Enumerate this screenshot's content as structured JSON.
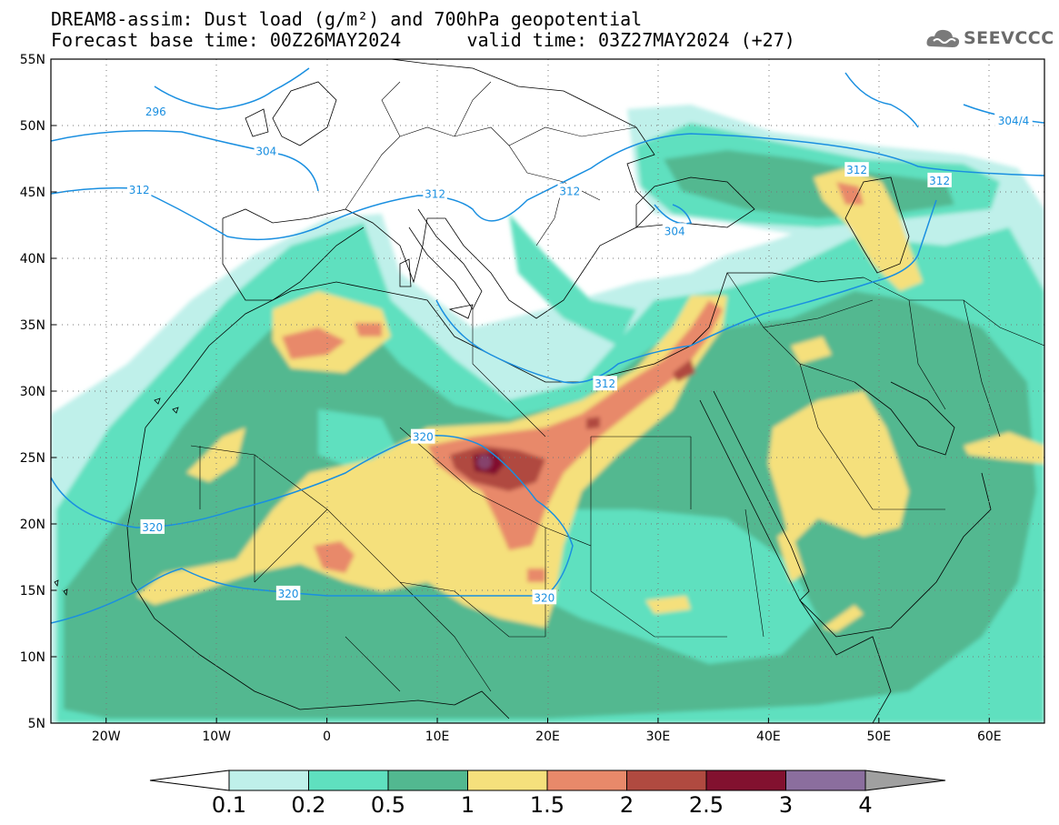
{
  "title": {
    "line1": "DREAM8-assim: Dust load (g/m²) and 700hPa geopotential",
    "line2": "Forecast base time: 00Z26MAY2024      valid time: 03Z27MAY2024 (+27)"
  },
  "logo": {
    "text": "SEEVCCC",
    "icon": "cloud-logo-icon"
  },
  "axes": {
    "lat_labels": [
      "55N",
      "50N",
      "45N",
      "40N",
      "35N",
      "30N",
      "25N",
      "20N",
      "15N",
      "10N",
      "5N"
    ],
    "lat_values": [
      55,
      50,
      45,
      40,
      35,
      30,
      25,
      20,
      15,
      10,
      5
    ],
    "lon_labels": [
      "20W",
      "10W",
      "0",
      "10E",
      "20E",
      "30E",
      "40E",
      "50E",
      "60E"
    ],
    "lon_values": [
      -20,
      -10,
      0,
      10,
      20,
      30,
      40,
      50,
      60
    ],
    "lon_range": [
      -25,
      65
    ],
    "lat_range": [
      5,
      55
    ],
    "grid": "dotted"
  },
  "geopotential_labels": [
    {
      "text": "296",
      "lon": -15.5,
      "lat": 51.1
    },
    {
      "text": "304",
      "lon": -5.5,
      "lat": 48.1
    },
    {
      "text": "312",
      "lon": -17.0,
      "lat": 45.2
    },
    {
      "text": "312",
      "lon": 9.8,
      "lat": 44.9
    },
    {
      "text": "312",
      "lon": 22.0,
      "lat": 45.1
    },
    {
      "text": "304",
      "lon": 31.5,
      "lat": 42.1
    },
    {
      "text": "312",
      "lon": 48.0,
      "lat": 46.7
    },
    {
      "text": "312",
      "lon": 55.5,
      "lat": 45.9
    },
    {
      "text": "304/4",
      "lon": 62.2,
      "lat": 50.4
    },
    {
      "text": "312",
      "lon": 25.2,
      "lat": 30.6
    },
    {
      "text": "320",
      "lon": 8.7,
      "lat": 26.6
    },
    {
      "text": "320",
      "lon": -15.8,
      "lat": 19.8
    },
    {
      "text": "320",
      "lon": -3.5,
      "lat": 14.8
    },
    {
      "text": "320",
      "lon": 19.7,
      "lat": 14.5
    }
  ],
  "colorbar": {
    "levels": [
      "0.1",
      "0.2",
      "0.5",
      "1",
      "1.5",
      "2",
      "2.5",
      "3",
      "4"
    ],
    "colors": [
      "#ffffff",
      "#bff0ea",
      "#5fe0bf",
      "#52b890",
      "#f5e07c",
      "#e8896a",
      "#b04a40",
      "#82112f",
      "#8b6e9e",
      "#a0a0a0"
    ]
  }
}
